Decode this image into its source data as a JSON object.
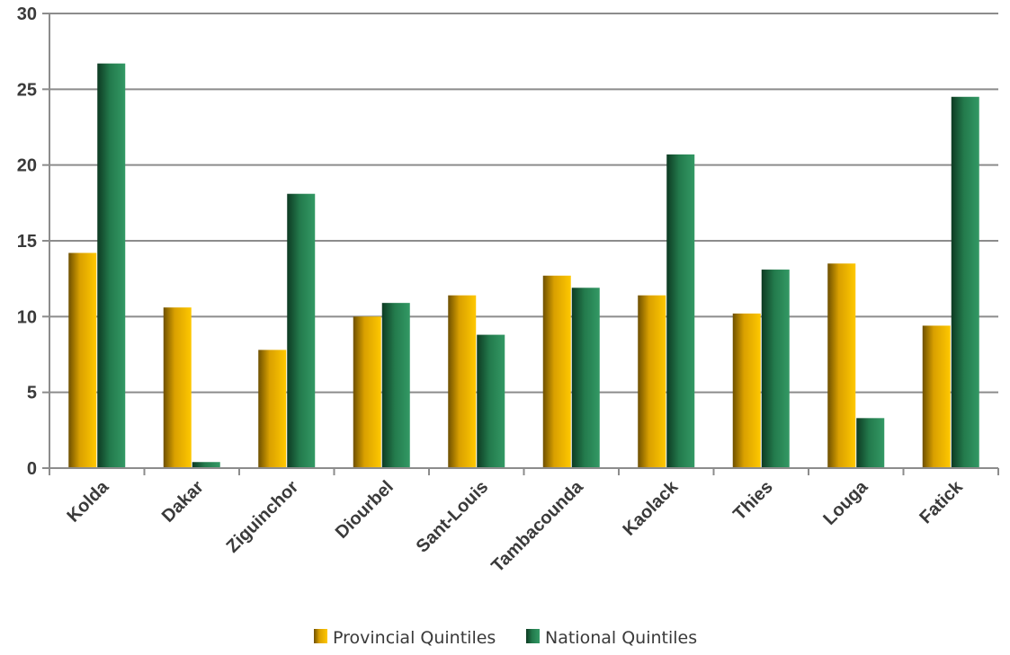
{
  "chart_data": {
    "type": "bar",
    "categories": [
      "Kolda",
      "Dakar",
      "Ziguinchor",
      "Diourbel",
      "Sant-Louis",
      "Tambacounda",
      "Kaolack",
      "Thies",
      "Louga",
      "Fatick"
    ],
    "series": [
      {
        "name": "Provincial Quintiles",
        "color": "#f5b800",
        "values": [
          14.2,
          10.6,
          7.8,
          10.0,
          11.4,
          12.7,
          11.4,
          10.2,
          13.5,
          9.4
        ]
      },
      {
        "name": "National Quintiles",
        "color": "#2e8b5a",
        "values": [
          26.7,
          0.4,
          18.1,
          10.9,
          8.8,
          11.9,
          20.7,
          13.1,
          3.3,
          24.5
        ]
      }
    ],
    "yticks": [
      "0",
      "5",
      "10",
      "15",
      "20",
      "25",
      "30"
    ],
    "ylim": [
      0,
      30
    ],
    "grid": true,
    "legend_position": "bottom"
  }
}
